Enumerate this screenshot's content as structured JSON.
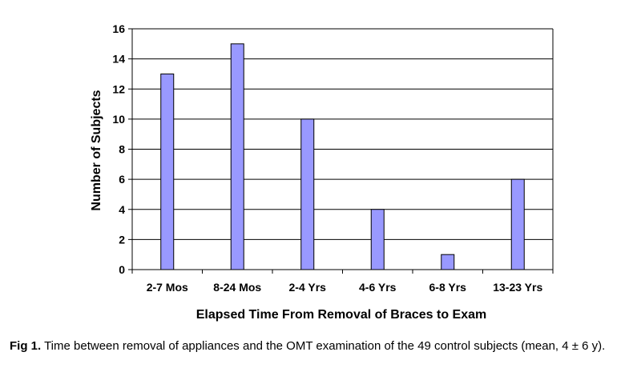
{
  "chart_data": {
    "type": "bar",
    "categories": [
      "2-7 Mos",
      "8-24 Mos",
      "2-4 Yrs",
      "4-6 Yrs",
      "6-8 Yrs",
      "13-23 Yrs"
    ],
    "values": [
      13,
      15,
      10,
      4,
      1,
      6
    ],
    "xlabel": "Elapsed Time From Removal of Braces to Exam",
    "ylabel": "Number of Subjects",
    "ylim": [
      0,
      16
    ],
    "yticks": [
      0,
      2,
      4,
      6,
      8,
      10,
      12,
      14,
      16
    ],
    "grid": true,
    "legend": "none",
    "bar_color": "#9999ff",
    "bar_edge_color": "#000000"
  },
  "caption": {
    "lead": "Fig 1.",
    "text": " Time between removal of appliances and the OMT examination of the 49 control subjects (mean, 4 ± 6 y)."
  }
}
